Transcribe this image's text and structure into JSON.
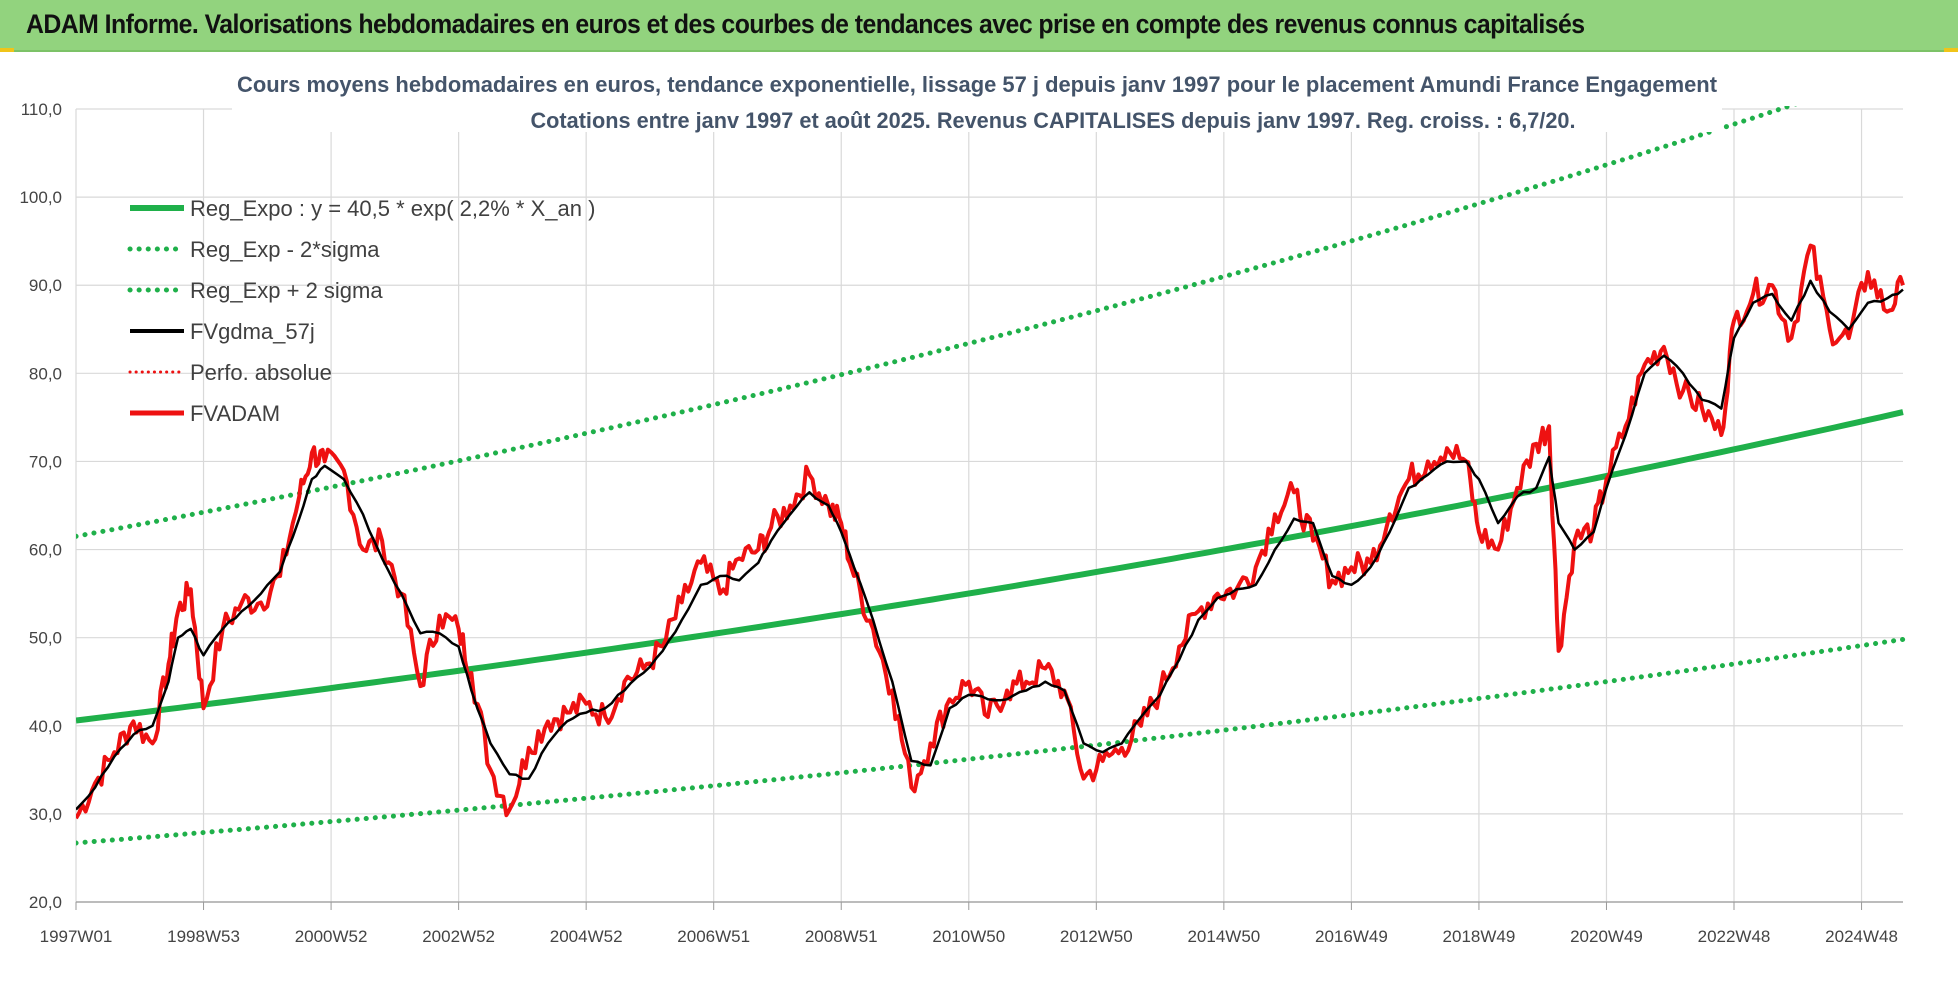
{
  "banner": {
    "title": "ADAM Informe. Valorisations hebdomadaires en euros et des courbes de tendances avec prise en compte des revenus connus capitalisés"
  },
  "colors": {
    "banner_bg": "#92d37e",
    "regression": "#1fb04a",
    "sigma_bands": "#1fb04a",
    "smoothed": "#000000",
    "price": "#ee1111",
    "grid": "#d9d9d9"
  },
  "chart_data": {
    "type": "line",
    "title_line1": "Cours moyens hebdomadaires en euros, tendance exponentielle, lissage 57 j depuis janv 1997  pour le placement Amundi France Engagement",
    "title_line2": "Cotations entre janv 1997 et août 2025. Revenus CAPITALISES depuis janv 1997. Reg. croiss. : 6,7/20.",
    "xlabel": "",
    "ylabel": "",
    "ylim": [
      20,
      110
    ],
    "xlim": [
      1997.0,
      2025.65
    ],
    "grid": true,
    "legend_position": "top-left",
    "y_ticks": [
      "20,0",
      "30,0",
      "40,0",
      "50,0",
      "60,0",
      "70,0",
      "80,0",
      "90,0",
      "100,0",
      "110,0"
    ],
    "x_ticks": [
      {
        "label": "1997W01",
        "x": 1997.0
      },
      {
        "label": "1998W53",
        "x": 1999.0
      },
      {
        "label": "2000W52",
        "x": 2001.0
      },
      {
        "label": "2002W52",
        "x": 2003.0
      },
      {
        "label": "2004W52",
        "x": 2005.0
      },
      {
        "label": "2006W51",
        "x": 2007.0
      },
      {
        "label": "2008W51",
        "x": 2009.0
      },
      {
        "label": "2010W50",
        "x": 2011.0
      },
      {
        "label": "2012W50",
        "x": 2013.0
      },
      {
        "label": "2014W50",
        "x": 2015.0
      },
      {
        "label": "2016W49",
        "x": 2017.0
      },
      {
        "label": "2018W49",
        "x": 2019.0
      },
      {
        "label": "2020W49",
        "x": 2021.0
      },
      {
        "label": "2022W48",
        "x": 2023.0
      },
      {
        "label": "2024W48",
        "x": 2025.0
      }
    ],
    "series": [
      {
        "name": "Reg_Expo : y = 40,5 * exp( 2,2% *  X_an )",
        "style": "solid-thick",
        "x": [
          1997.0,
          2001.0,
          2005.0,
          2009.0,
          2013.0,
          2017.0,
          2021.0,
          2025.65
        ],
        "y": [
          40.6,
          44.3,
          48.4,
          52.8,
          57.6,
          62.9,
          68.7,
          75.6
        ]
      },
      {
        "name": "Reg_Exp - 2*sigma",
        "style": "dotted",
        "x": [
          1997.0,
          2001.0,
          2005.0,
          2009.0,
          2013.0,
          2017.0,
          2021.0,
          2025.65
        ],
        "y": [
          26.7,
          29.1,
          31.8,
          34.7,
          37.9,
          41.4,
          45.2,
          49.8
        ]
      },
      {
        "name": "Reg_Exp + 2 sigma",
        "style": "dotted",
        "x": [
          1997.0,
          2001.0,
          2005.0,
          2009.0,
          2013.0,
          2017.0,
          2021.0,
          2025.65
        ],
        "y": [
          61.5,
          67.2,
          73.4,
          80.1,
          87.5,
          95.5,
          104.3,
          114.7
        ]
      },
      {
        "name": "FVgdma_57j",
        "style": "solid",
        "x": [
          1997.0,
          1997.3,
          1997.6,
          1997.9,
          1998.2,
          1998.45,
          1998.6,
          1998.8,
          1999.0,
          1999.3,
          1999.6,
          1999.9,
          2000.2,
          2000.5,
          2000.7,
          2000.9,
          2001.2,
          2001.5,
          2001.8,
          2002.1,
          2002.4,
          2002.7,
          2003.0,
          2003.2,
          2003.5,
          2003.8,
          2004.1,
          2004.4,
          2004.7,
          2005.0,
          2005.3,
          2005.6,
          2005.9,
          2006.2,
          2006.5,
          2006.8,
          2007.1,
          2007.4,
          2007.7,
          2007.9,
          2008.2,
          2008.5,
          2008.8,
          2009.0,
          2009.2,
          2009.5,
          2009.8,
          2010.1,
          2010.4,
          2010.7,
          2011.0,
          2011.3,
          2011.6,
          2011.9,
          2012.2,
          2012.5,
          2012.8,
          2013.1,
          2013.4,
          2013.7,
          2014.0,
          2014.3,
          2014.6,
          2014.9,
          2015.2,
          2015.5,
          2015.8,
          2016.1,
          2016.4,
          2016.7,
          2017.0,
          2017.3,
          2017.6,
          2017.9,
          2018.2,
          2018.5,
          2018.8,
          2019.0,
          2019.3,
          2019.6,
          2019.9,
          2020.1,
          2020.25,
          2020.5,
          2020.8,
          2021.0,
          2021.3,
          2021.6,
          2021.9,
          2022.2,
          2022.5,
          2022.8,
          2023.0,
          2023.3,
          2023.6,
          2023.9,
          2024.2,
          2024.5,
          2024.8,
          2025.1,
          2025.4,
          2025.65
        ],
        "y": [
          30.5,
          33.0,
          36.5,
          39.0,
          40.0,
          45.0,
          50.0,
          51.0,
          48.0,
          51.0,
          53.0,
          55.0,
          57.5,
          63.5,
          68.0,
          69.5,
          68.0,
          64.0,
          59.0,
          55.0,
          50.5,
          50.5,
          49.0,
          44.0,
          38.0,
          34.5,
          34.0,
          38.0,
          40.5,
          41.5,
          42.0,
          44.0,
          46.0,
          48.5,
          52.0,
          56.0,
          57.0,
          56.5,
          58.5,
          61.0,
          64.0,
          66.5,
          65.0,
          62.0,
          58.0,
          52.0,
          45.0,
          36.0,
          35.5,
          42.0,
          43.5,
          43.0,
          43.0,
          44.0,
          45.0,
          44.0,
          38.0,
          37.0,
          38.0,
          41.0,
          43.5,
          47.5,
          52.0,
          54.5,
          55.5,
          56.0,
          60.0,
          63.5,
          63.0,
          57.0,
          56.0,
          58.0,
          62.0,
          67.0,
          68.5,
          70.0,
          70.0,
          68.0,
          63.0,
          66.0,
          67.0,
          70.5,
          63.0,
          60.0,
          62.0,
          67.0,
          73.0,
          80.0,
          82.0,
          80.0,
          77.0,
          76.0,
          84.0,
          88.0,
          89.0,
          86.0,
          90.5,
          87.0,
          85.0,
          88.0,
          88.5,
          89.5
        ]
      },
      {
        "name": "Perfo. absolue",
        "style": "dotted",
        "values": []
      },
      {
        "name": "FVADAM",
        "style": "solid-thick",
        "x": [
          1997.0,
          1997.3,
          1997.6,
          1997.9,
          1998.2,
          1998.45,
          1998.6,
          1998.8,
          1999.0,
          1999.3,
          1999.6,
          1999.9,
          2000.2,
          2000.5,
          2000.7,
          2000.9,
          2001.2,
          2001.5,
          2001.8,
          2002.1,
          2002.4,
          2002.7,
          2003.0,
          2003.2,
          2003.5,
          2003.8,
          2004.1,
          2004.4,
          2004.7,
          2005.0,
          2005.3,
          2005.6,
          2005.9,
          2006.2,
          2006.5,
          2006.8,
          2007.1,
          2007.4,
          2007.7,
          2007.9,
          2008.2,
          2008.5,
          2008.8,
          2009.0,
          2009.2,
          2009.5,
          2009.8,
          2010.1,
          2010.4,
          2010.7,
          2011.0,
          2011.3,
          2011.6,
          2011.9,
          2012.2,
          2012.5,
          2012.8,
          2013.1,
          2013.4,
          2013.7,
          2014.0,
          2014.3,
          2014.6,
          2014.9,
          2015.2,
          2015.5,
          2015.8,
          2016.1,
          2016.4,
          2016.7,
          2017.0,
          2017.3,
          2017.6,
          2017.9,
          2018.2,
          2018.5,
          2018.8,
          2019.0,
          2019.3,
          2019.6,
          2019.9,
          2020.1,
          2020.25,
          2020.5,
          2020.8,
          2021.0,
          2021.3,
          2021.6,
          2021.9,
          2022.2,
          2022.5,
          2022.8,
          2023.0,
          2023.3,
          2023.6,
          2023.9,
          2024.2,
          2024.5,
          2024.8,
          2025.1,
          2025.4,
          2025.65
        ],
        "y": [
          29.5,
          33.5,
          37.0,
          40.5,
          38.0,
          47.0,
          53.0,
          55.5,
          42.0,
          51.0,
          54.0,
          54.0,
          57.0,
          66.0,
          71.0,
          70.0,
          69.0,
          60.0,
          61.0,
          55.0,
          44.5,
          52.5,
          51.0,
          46.0,
          35.0,
          30.5,
          37.5,
          40.5,
          41.5,
          42.5,
          41.0,
          45.0,
          46.5,
          49.0,
          54.0,
          58.5,
          55.0,
          59.0,
          60.0,
          62.5,
          65.0,
          68.5,
          65.0,
          63.0,
          57.0,
          51.0,
          44.0,
          33.0,
          38.0,
          43.0,
          45.0,
          41.0,
          44.0,
          45.0,
          46.5,
          44.0,
          34.0,
          36.0,
          37.5,
          40.0,
          44.0,
          49.0,
          53.0,
          55.0,
          55.5,
          58.0,
          64.0,
          66.5,
          61.0,
          56.5,
          58.0,
          58.5,
          64.0,
          68.0,
          70.0,
          71.5,
          70.0,
          62.0,
          60.0,
          67.0,
          72.0,
          74.0,
          48.5,
          61.0,
          62.5,
          68.0,
          74.0,
          81.0,
          83.0,
          78.0,
          76.0,
          73.0,
          86.0,
          89.0,
          90.0,
          84.0,
          94.5,
          85.0,
          84.0,
          91.5,
          87.0,
          90.0
        ]
      }
    ]
  }
}
